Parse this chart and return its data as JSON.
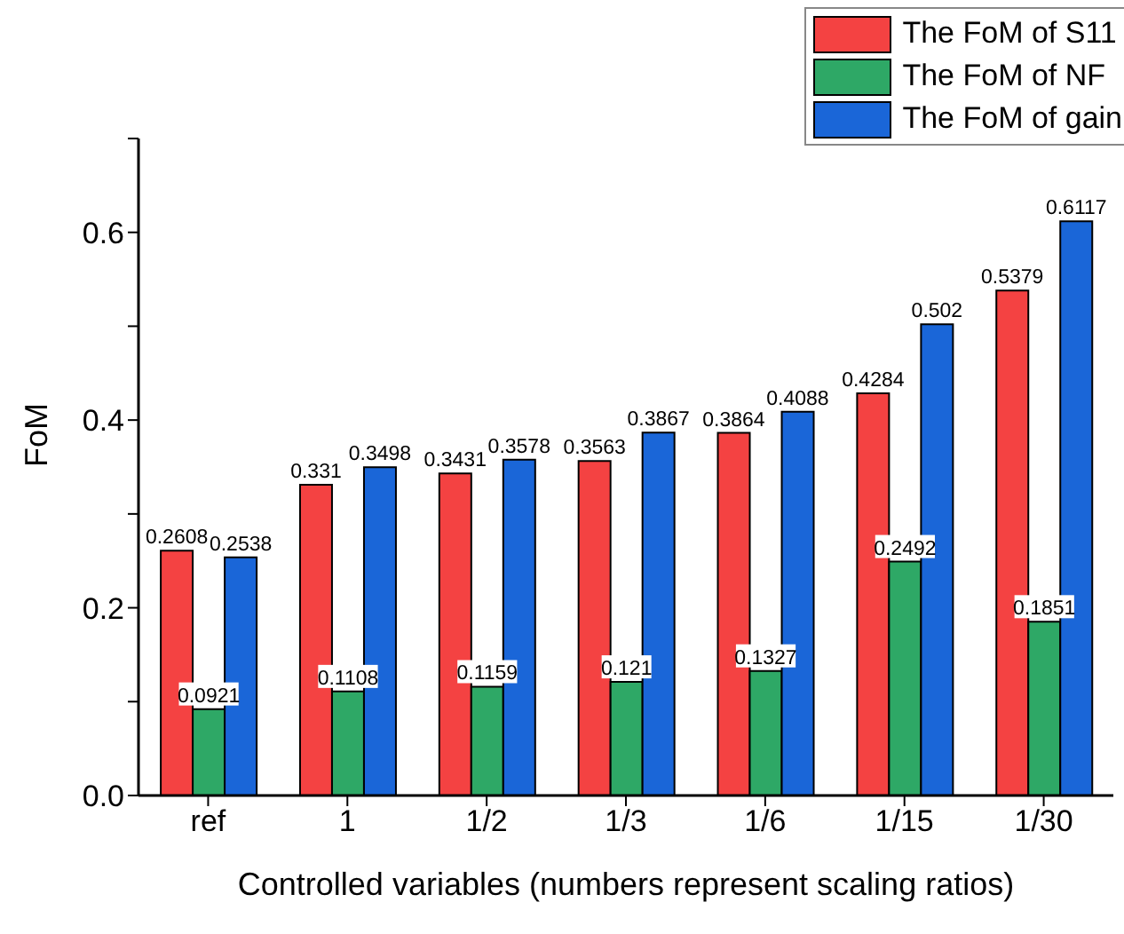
{
  "chart_data": {
    "type": "bar",
    "xlabel": "Controlled variables (numbers represent scaling ratios)",
    "ylabel": "FoM",
    "categories": [
      "ref",
      "1",
      "1/2",
      "1/3",
      "1/6",
      "1/15",
      "1/30"
    ],
    "series": [
      {
        "name": "The FoM of S11",
        "color": "#f44242",
        "values": [
          0.2608,
          0.331,
          0.3431,
          0.3563,
          0.3864,
          0.4284,
          0.5379
        ]
      },
      {
        "name": "The FoM of NF",
        "color": "#2ea866",
        "values": [
          0.0921,
          0.1108,
          0.1159,
          0.121,
          0.1327,
          0.2492,
          0.1851
        ]
      },
      {
        "name": "The FoM of gain",
        "color": "#1a66d8",
        "values": [
          0.2538,
          0.3498,
          0.3578,
          0.3867,
          0.4088,
          0.502,
          0.6117
        ]
      }
    ],
    "ylim": [
      0,
      0.7
    ],
    "yticks": [
      {
        "value": 0,
        "label": "0.0"
      },
      {
        "value": 0.1,
        "label": null
      },
      {
        "value": 0.2,
        "label": "0.2"
      },
      {
        "value": 0.3,
        "label": null
      },
      {
        "value": 0.4,
        "label": "0.4"
      },
      {
        "value": 0.5,
        "label": null
      },
      {
        "value": 0.6,
        "label": "0.6"
      },
      {
        "value": 0.7,
        "label": null
      }
    ],
    "grid": false,
    "legend": "top right",
    "data_labels": true
  }
}
